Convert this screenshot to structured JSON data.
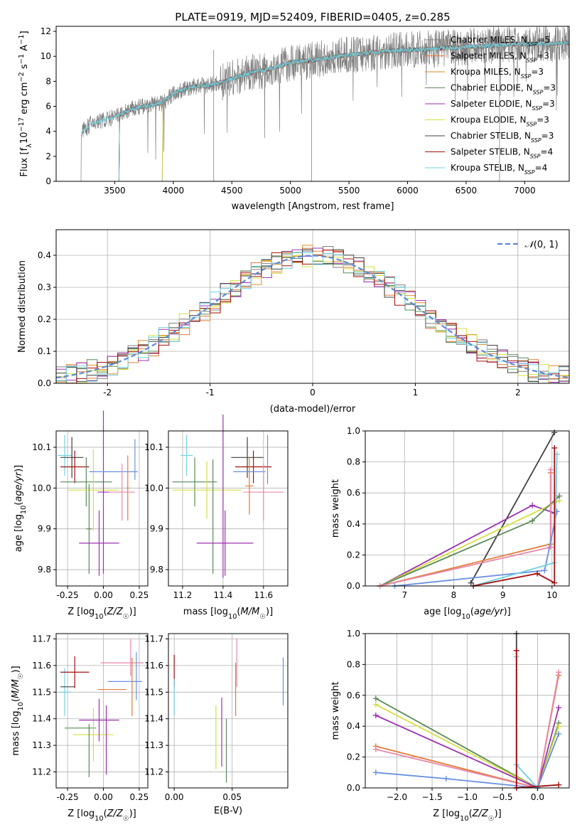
{
  "figure": {
    "title": "PLATE=0919, MJD=52409, FIBERID=0405, z=0.285"
  },
  "colors": {
    "Chabrier MILES": "#808080",
    "Salpeter MILES": "#e07b39",
    "Kroupa MILES": "#e08a2a",
    "Chabrier ELODIE": "#5a8a5a",
    "Salpeter ELODIE": "#9b30b0",
    "Kroupa ELODIE": "#d4e040",
    "Chabrier STELIB": "#404040",
    "Salpeter STELIB": "#a01010",
    "Kroupa STELIB": "#70d0e0",
    "normal": "#5b8bd6",
    "pink": "#e888a8",
    "blue": "#6890e0"
  },
  "chart_data": [
    {
      "type": "line",
      "panel": "spectrum",
      "xlabel": "wavelength [Angstrom, rest frame]",
      "ylabel": "Flux [f_λ 10^-17 erg cm^-2 s^-1 A^-1]",
      "xlim": [
        3000,
        7380
      ],
      "ylim": [
        0,
        12.4
      ],
      "xticks": [
        3500,
        4000,
        4500,
        5000,
        5500,
        6000,
        6500,
        7000
      ],
      "yticks": [
        0,
        2,
        4,
        6,
        8,
        10,
        12
      ],
      "legend_position": "top-right",
      "series": [
        {
          "name": "Chabrier MILES, N_SSP=5",
          "color": "#808080"
        },
        {
          "name": "Salpeter MILES, N_SSP=3",
          "color": "#e07b39"
        },
        {
          "name": "Kroupa MILES, N_SSP=3",
          "color": "#e08a2a"
        },
        {
          "name": "Chabrier ELODIE, N_SSP=3",
          "color": "#5a8a5a"
        },
        {
          "name": "Salpeter ELODIE, N_SSP=3",
          "color": "#9b30b0"
        },
        {
          "name": "Kroupa ELODIE, N_SSP=3",
          "color": "#d4e040"
        },
        {
          "name": "Chabrier STELIB, N_SSP=3",
          "color": "#404040"
        },
        {
          "name": "Salpeter STELIB, N_SSP=4",
          "color": "#a01010"
        },
        {
          "name": "Kroupa STELIB, N_SSP=4",
          "color": "#70d0e0"
        }
      ],
      "continuum": {
        "x": [
          3200,
          3300,
          3400,
          3500,
          3600,
          3700,
          3800,
          3900,
          4000,
          4100,
          4200,
          4300,
          4400,
          4500,
          4600,
          4700,
          4800,
          4900,
          5000,
          5200,
          5400,
          5600,
          5800,
          6000,
          6200,
          6400,
          6600,
          6800,
          7000,
          7200,
          7380
        ],
        "y": [
          3.8,
          4.6,
          4.9,
          5.1,
          5.6,
          5.9,
          6.1,
          6.3,
          7.0,
          7.4,
          7.6,
          7.7,
          7.9,
          8.2,
          8.5,
          8.8,
          8.9,
          9.2,
          9.5,
          9.7,
          10.0,
          10.2,
          10.4,
          10.5,
          10.6,
          10.7,
          10.8,
          10.9,
          11.0,
          11.0,
          11.1
        ]
      },
      "data_start": 3210,
      "model_start": 3530
    },
    {
      "type": "bar",
      "panel": "residuals",
      "xlabel": "(data-model)/error",
      "ylabel": "Normed distribution",
      "xlim": [
        -2.5,
        2.5
      ],
      "ylim": [
        0,
        0.48
      ],
      "xticks": [
        -2,
        -1,
        0,
        1,
        2
      ],
      "yticks": [
        0.0,
        0.1,
        0.2,
        0.3,
        0.4
      ],
      "legend": "N(0,1)",
      "bin_width": 0.1
    },
    {
      "type": "scatter",
      "panel": "age-vs-Z",
      "xlabel": "Z [log10(Z/Z☉)]",
      "ylabel": "age [log10(age/yr)]",
      "xlim": [
        -0.33,
        0.31
      ],
      "ylim": [
        9.76,
        10.14
      ],
      "xticks": [
        -0.25,
        0.0,
        0.25
      ],
      "yticks": [
        9.8,
        9.9,
        10.0,
        10.1
      ],
      "points": [
        {
          "x": -0.27,
          "y": 10.08,
          "xerr": 0.05,
          "yerr": 0.05,
          "color": "#70d0e0"
        },
        {
          "x": -0.22,
          "y": 10.075,
          "xerr": 0.08,
          "yerr": 0.05,
          "color": "#404040"
        },
        {
          "x": -0.2,
          "y": 10.052,
          "xerr": 0.1,
          "yerr": 0.04,
          "color": "#a01010"
        },
        {
          "x": -0.12,
          "y": 10.015,
          "xerr": 0.18,
          "yerr": 0.06,
          "color": "#5a8a5a"
        },
        {
          "x": -0.07,
          "y": 9.995,
          "xerr": 0.18,
          "yerr": 0.1,
          "color": "#d4e040"
        },
        {
          "x": -0.1,
          "y": 9.9,
          "xerr": 0.02,
          "yerr": 0.11,
          "color": "#5a8a5a"
        },
        {
          "x": -0.03,
          "y": 9.865,
          "xerr": 0.14,
          "yerr": 0.08,
          "color": "#9b30b0"
        },
        {
          "x": 0.0,
          "y": 9.99,
          "xerr": 0.04,
          "yerr": 0.2,
          "color": "#9b30b0"
        },
        {
          "x": 0.07,
          "y": 10.04,
          "xerr": 0.17,
          "yerr": 0.0,
          "color": "#6890e0"
        },
        {
          "x": 0.22,
          "y": 10.07,
          "xerr": 0.0,
          "yerr": 0.05,
          "color": "#6890e0"
        },
        {
          "x": 0.17,
          "y": 10.0,
          "xerr": 0.01,
          "yerr": 0.08,
          "color": "#e07b39"
        },
        {
          "x": 0.13,
          "y": 9.99,
          "xerr": 0.09,
          "yerr": 0.07,
          "color": "#e888a8"
        }
      ]
    },
    {
      "type": "scatter",
      "panel": "age-vs-mass",
      "xlabel": "mass [log10(M/M☉)]",
      "ylabel": "",
      "xlim": [
        11.13,
        11.72
      ],
      "ylim": [
        9.76,
        10.14
      ],
      "xticks": [
        11.2,
        11.4,
        11.6
      ],
      "yticks": [
        9.8,
        9.9,
        10.0,
        10.1
      ],
      "points": [
        {
          "x": 11.22,
          "y": 10.08,
          "xerr": 0.03,
          "yerr": 0.05,
          "color": "#70d0e0"
        },
        {
          "x": 11.52,
          "y": 10.075,
          "xerr": 0.08,
          "yerr": 0.05,
          "color": "#404040"
        },
        {
          "x": 11.55,
          "y": 10.052,
          "xerr": 0.09,
          "yerr": 0.04,
          "color": "#a01010"
        },
        {
          "x": 11.26,
          "y": 10.015,
          "xerr": 0.11,
          "yerr": 0.06,
          "color": "#5a8a5a"
        },
        {
          "x": 11.32,
          "y": 9.995,
          "xerr": 0.17,
          "yerr": 0.07,
          "color": "#d4e040"
        },
        {
          "x": 11.35,
          "y": 9.93,
          "xerr": 0.0,
          "yerr": 0.14,
          "color": "#5a8a5a"
        },
        {
          "x": 11.41,
          "y": 9.865,
          "xerr": 0.14,
          "yerr": 0.08,
          "color": "#9b30b0"
        },
        {
          "x": 11.4,
          "y": 9.98,
          "xerr": 0.0,
          "yerr": 0.2,
          "color": "#9b30b0"
        },
        {
          "x": 11.53,
          "y": 10.04,
          "xerr": 0.08,
          "yerr": 0.0,
          "color": "#6890e0"
        },
        {
          "x": 11.53,
          "y": 10.005,
          "xerr": 0.02,
          "yerr": 0.07,
          "color": "#e07b39"
        },
        {
          "x": 11.6,
          "y": 9.99,
          "xerr": 0.1,
          "yerr": 0.07,
          "color": "#e888a8"
        },
        {
          "x": 11.62,
          "y": 10.07,
          "xerr": 0.0,
          "yerr": 0.06,
          "color": "#6890e0"
        }
      ]
    },
    {
      "type": "line",
      "panel": "mass-weight-vs-age",
      "xlabel": "age [log10(age/yr)]",
      "ylabel": "mass weight",
      "xlim": [
        6.2,
        10.35
      ],
      "ylim": [
        0,
        1.0
      ],
      "xticks": [
        7,
        8,
        9,
        10
      ],
      "yticks": [
        0.0,
        0.2,
        0.4,
        0.6,
        0.8,
        1.0
      ],
      "series": [
        {
          "color": "#404040",
          "points": [
            [
              8.35,
              0.02
            ],
            [
              10.05,
              0.99
            ]
          ]
        },
        {
          "color": "#9b30b0",
          "points": [
            [
              6.5,
              0.0
            ],
            [
              9.6,
              0.52
            ],
            [
              10.05,
              0.47
            ]
          ]
        },
        {
          "color": "#d4e040",
          "points": [
            [
              6.5,
              0.0
            ],
            [
              10.15,
              0.55
            ]
          ]
        },
        {
          "color": "#5a8a5a",
          "points": [
            [
              6.5,
              0.0
            ],
            [
              9.6,
              0.42
            ],
            [
              10.15,
              0.58
            ]
          ]
        },
        {
          "color": "#e07b39",
          "points": [
            [
              6.5,
              0.0
            ],
            [
              9.97,
              0.27
            ],
            [
              9.97,
              0.73
            ]
          ]
        },
        {
          "color": "#e888a8",
          "points": [
            [
              6.5,
              0.0
            ],
            [
              9.97,
              0.25
            ],
            [
              9.97,
              0.75
            ]
          ]
        },
        {
          "color": "#6890e0",
          "points": [
            [
              6.8,
              0.0
            ],
            [
              9.85,
              0.1
            ],
            [
              10.1,
              0.48
            ]
          ]
        },
        {
          "color": "#70d0e0",
          "points": [
            [
              8.4,
              0.0
            ],
            [
              10.05,
              0.15
            ],
            [
              10.1,
              0.85
            ]
          ]
        },
        {
          "color": "#a01010",
          "points": [
            [
              8.4,
              0.0
            ],
            [
              9.7,
              0.08
            ],
            [
              10.05,
              0.02
            ],
            [
              10.05,
              0.89
            ]
          ]
        }
      ]
    },
    {
      "type": "scatter",
      "panel": "mass-vs-Z",
      "xlabel": "Z [log10(Z/Z☉)]",
      "ylabel": "mass [log10(M/M☉)]",
      "xlim": [
        -0.33,
        0.31
      ],
      "ylim": [
        11.14,
        11.72
      ],
      "xticks": [
        -0.25,
        0.0,
        0.25
      ],
      "yticks": [
        11.2,
        11.3,
        11.4,
        11.5,
        11.6,
        11.7
      ],
      "points": [
        {
          "x": -0.27,
          "y": 11.5,
          "xerr": 0.04,
          "yerr": 0.09,
          "color": "#70d0e0"
        },
        {
          "x": -0.25,
          "y": 11.52,
          "xerr": 0.05,
          "yerr": 0.0,
          "color": "#404040"
        },
        {
          "x": -0.2,
          "y": 11.575,
          "xerr": 0.1,
          "yerr": 0.06,
          "color": "#a01010"
        },
        {
          "x": -0.16,
          "y": 11.365,
          "xerr": 0.11,
          "yerr": 0.0,
          "color": "#5a8a5a"
        },
        {
          "x": -0.07,
          "y": 11.34,
          "xerr": 0.14,
          "yerr": 0.1,
          "color": "#d4e040"
        },
        {
          "x": -0.1,
          "y": 11.28,
          "xerr": 0.0,
          "yerr": 0.1,
          "color": "#5a8a5a"
        },
        {
          "x": -0.03,
          "y": 11.395,
          "xerr": 0.14,
          "yerr": 0.08,
          "color": "#9b30b0"
        },
        {
          "x": 0.02,
          "y": 11.32,
          "xerr": 0.0,
          "yerr": 0.13,
          "color": "#9b30b0"
        },
        {
          "x": 0.06,
          "y": 11.51,
          "xerr": 0.1,
          "yerr": 0.0,
          "color": "#e07b39"
        },
        {
          "x": 0.15,
          "y": 11.54,
          "xerr": 0.12,
          "yerr": 0.0,
          "color": "#6890e0"
        },
        {
          "x": 0.13,
          "y": 11.61,
          "xerr": 0.15,
          "yerr": 0.0,
          "color": "#e888a8"
        },
        {
          "x": 0.2,
          "y": 11.52,
          "xerr": 0.0,
          "yerr": 0.11,
          "color": "#e07b39"
        },
        {
          "x": 0.23,
          "y": 11.56,
          "xerr": 0.0,
          "yerr": 0.09,
          "color": "#6890e0"
        },
        {
          "x": 0.19,
          "y": 11.63,
          "xerr": 0.0,
          "yerr": 0.07,
          "color": "#e888a8"
        }
      ]
    },
    {
      "type": "scatter",
      "panel": "mass-vs-EBV",
      "xlabel": "E(B-V)",
      "ylabel": "",
      "xlim": [
        -0.005,
        0.098
      ],
      "ylim": [
        11.14,
        11.72
      ],
      "xticks": [
        0.0,
        0.05
      ],
      "yticks": [
        11.2,
        11.3,
        11.4,
        11.5,
        11.6,
        11.7
      ],
      "points": [
        {
          "x": 0.0,
          "y": 11.58,
          "yerr": 0.06,
          "color": "#a01010"
        },
        {
          "x": 0.0,
          "y": 11.48,
          "yerr": 0.07,
          "color": "#70d0e0"
        },
        {
          "x": 0.036,
          "y": 11.33,
          "yerr": 0.12,
          "color": "#d4e040"
        },
        {
          "x": 0.041,
          "y": 11.35,
          "yerr": 0.13,
          "color": "#9b30b0"
        },
        {
          "x": 0.045,
          "y": 11.28,
          "yerr": 0.12,
          "color": "#5a8a5a"
        },
        {
          "x": 0.053,
          "y": 11.51,
          "yerr": 0.1,
          "color": "#e07b39"
        },
        {
          "x": 0.054,
          "y": 11.61,
          "yerr": 0.09,
          "color": "#e888a8"
        },
        {
          "x": 0.094,
          "y": 11.54,
          "yerr": 0.09,
          "color": "#6890e0"
        }
      ]
    },
    {
      "type": "line",
      "panel": "mass-weight-vs-Z",
      "xlabel": "Z [log10(Z/Z☉)]",
      "ylabel": "mass weight",
      "xlim": [
        -2.45,
        0.45
      ],
      "ylim": [
        0,
        1.0
      ],
      "xticks": [
        -2.0,
        -1.5,
        -1.0,
        -0.5,
        0.0
      ],
      "yticks": [
        0.0,
        0.2,
        0.4,
        0.6,
        0.8,
        1.0
      ],
      "series": [
        {
          "color": "#5a8a5a",
          "points": [
            [
              -2.3,
              0.58
            ],
            [
              0.0,
              0.0
            ],
            [
              0.3,
              0.42
            ]
          ]
        },
        {
          "color": "#d4e040",
          "points": [
            [
              -2.3,
              0.54
            ],
            [
              0.0,
              0.0
            ],
            [
              0.3,
              0.4
            ]
          ]
        },
        {
          "color": "#9b30b0",
          "points": [
            [
              -2.3,
              0.47
            ],
            [
              0.0,
              0.0
            ],
            [
              0.3,
              0.52
            ]
          ]
        },
        {
          "color": "#e07b39",
          "points": [
            [
              -2.3,
              0.27
            ],
            [
              0.0,
              0.0
            ],
            [
              0.3,
              0.73
            ]
          ]
        },
        {
          "color": "#e888a8",
          "points": [
            [
              -2.3,
              0.25
            ],
            [
              0.0,
              0.0
            ],
            [
              0.3,
              0.75
            ]
          ]
        },
        {
          "color": "#6890e0",
          "points": [
            [
              -2.3,
              0.1
            ],
            [
              -1.3,
              0.06
            ],
            [
              0.0,
              0.0
            ],
            [
              0.3,
              0.35
            ]
          ]
        },
        {
          "color": "#70d0e0",
          "points": [
            [
              -0.3,
              0.85
            ],
            [
              -0.3,
              0.15
            ],
            [
              0.0,
              0.0
            ]
          ]
        },
        {
          "color": "#404040",
          "points": [
            [
              -0.3,
              1.0
            ],
            [
              -0.3,
              0.0
            ]
          ]
        },
        {
          "color": "#a01010",
          "points": [
            [
              -0.3,
              0.89
            ],
            [
              -0.3,
              0.0
            ],
            [
              0.3,
              0.02
            ]
          ]
        }
      ]
    }
  ]
}
